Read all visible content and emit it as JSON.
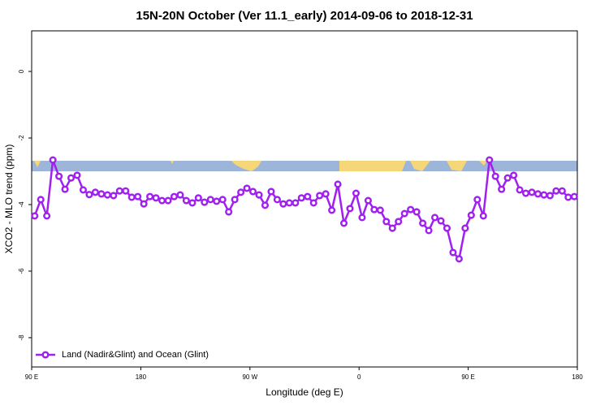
{
  "chart_data": {
    "type": "line",
    "title": "15N-20N October (Ver 11.1_early)   2014-09-06 to 2018-12-31",
    "x_label": "Longitude (deg E)",
    "y_label": "XCO2 - MLO trend (ppm)",
    "x": [
      92.5,
      97.5,
      102.5,
      107.5,
      112.5,
      117.5,
      122.5,
      127.5,
      132.5,
      137.5,
      142.5,
      147.5,
      152.5,
      157.5,
      162.5,
      167.5,
      172.5,
      177.5,
      182.5,
      187.5,
      192.5,
      197.5,
      202.5,
      207.5,
      212.5,
      217.5,
      222.5,
      227.5,
      232.5,
      237.5,
      242.5,
      247.5,
      252.5,
      257.5,
      262.5,
      267.5,
      272.5,
      277.5,
      282.5,
      287.5,
      292.5,
      297.5,
      302.5,
      307.5,
      312.5,
      317.5,
      322.5,
      327.5,
      332.5,
      337.5,
      342.5,
      347.5,
      352.5,
      357.5,
      362.5,
      367.5,
      372.5,
      377.5,
      382.5,
      387.5,
      392.5,
      397.5,
      402.5,
      407.5,
      412.5,
      417.5,
      422.5,
      427.5,
      432.5,
      437.5,
      442.5,
      447.5,
      452.5,
      457.5,
      462.5,
      467.5,
      472.5,
      477.5,
      482.5,
      487.5,
      492.5,
      497.5,
      502.5,
      507.5,
      512.5,
      517.5,
      522.5,
      527.5,
      532.5,
      537.5
    ],
    "series": [
      {
        "name": "Land (Nadir&Glint) and Ocean (Glint)",
        "color": "#a020f0",
        "values": [
          -4.34,
          -3.85,
          -4.34,
          -2.66,
          -3.15,
          -3.54,
          -3.2,
          -3.12,
          -3.56,
          -3.7,
          -3.63,
          -3.68,
          -3.71,
          -3.73,
          -3.59,
          -3.59,
          -3.78,
          -3.76,
          -3.98,
          -3.76,
          -3.8,
          -3.88,
          -3.88,
          -3.76,
          -3.71,
          -3.88,
          -3.95,
          -3.8,
          -3.93,
          -3.85,
          -3.9,
          -3.85,
          -4.22,
          -3.85,
          -3.63,
          -3.51,
          -3.61,
          -3.71,
          -4.02,
          -3.61,
          -3.85,
          -3.98,
          -3.95,
          -3.95,
          -3.8,
          -3.76,
          -3.95,
          -3.73,
          -3.68,
          -4.17,
          -3.39,
          -4.56,
          -4.12,
          -3.66,
          -4.39,
          -3.88,
          -4.15,
          -4.17,
          -4.51,
          -4.71,
          -4.51,
          -4.27,
          -4.15,
          -4.22,
          -4.56,
          -4.78,
          -4.39,
          -4.49,
          -4.71,
          -5.44,
          -5.63,
          -4.71,
          -4.32,
          -3.85,
          -4.34,
          -2.66,
          -3.15,
          -3.54,
          -3.2,
          -3.12,
          -3.56,
          -3.66,
          -3.63,
          -3.68,
          -3.71,
          -3.73,
          -3.59,
          -3.59,
          -3.78,
          -3.76
        ]
      }
    ],
    "xlim": [
      90,
      540
    ],
    "xticks": [
      {
        "value": 90,
        "label": "90 E"
      },
      180,
      {
        "value": 270,
        "label": "90 W"
      },
      {
        "value": 360,
        "label": "0"
      },
      {
        "value": 450,
        "label": "90 E"
      },
      {
        "value": 540,
        "label": "180"
      }
    ],
    "ylim": [
      -8.88,
      1.22
    ],
    "yticks": [
      0,
      -2,
      -4,
      -6,
      -8
    ],
    "legend": "bottom-left"
  }
}
